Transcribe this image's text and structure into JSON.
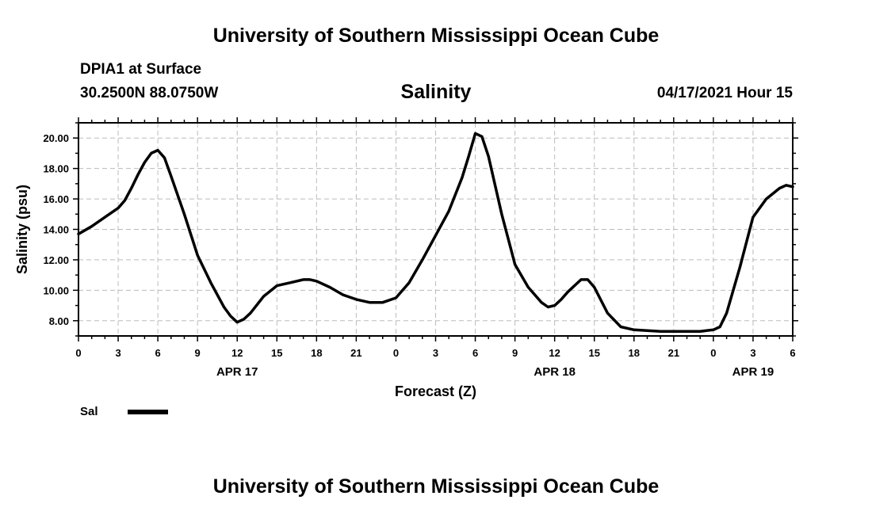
{
  "header": {
    "top_title": "University of Southern Mississippi Ocean Cube",
    "station": "DPIA1 at Surface",
    "coords": "30.2500N  88.0750W",
    "chart_title": "Salinity",
    "timestamp": "04/17/2021 Hour 15",
    "bottom_title": "University of Southern Mississippi Ocean Cube"
  },
  "legend": {
    "label": "Sal",
    "color": "#000000"
  },
  "chart_data": {
    "type": "line",
    "title": "Salinity",
    "xlabel": "Forecast (Z)",
    "ylabel": "Salinity (psu)",
    "xlim": [
      0,
      54
    ],
    "ylim": [
      7.0,
      21.0
    ],
    "x_ticks": [
      0,
      3,
      6,
      9,
      12,
      15,
      18,
      21,
      24,
      27,
      30,
      33,
      36,
      39,
      42,
      45,
      48,
      51,
      54
    ],
    "x_tick_labels": [
      "0",
      "3",
      "6",
      "9",
      "12",
      "15",
      "18",
      "21",
      "0",
      "3",
      "6",
      "9",
      "12",
      "15",
      "18",
      "21",
      "0",
      "3",
      "6"
    ],
    "date_labels": [
      {
        "x": 12,
        "label": "APR 17"
      },
      {
        "x": 36,
        "label": "APR 18"
      },
      {
        "x": 51,
        "label": "APR 19"
      }
    ],
    "y_ticks": [
      8,
      10,
      12,
      14,
      16,
      18,
      20
    ],
    "y_tick_labels": [
      "8.00",
      "10.00",
      "12.00",
      "14.00",
      "16.00",
      "18.00",
      "20.00"
    ],
    "grid": true,
    "series": [
      {
        "name": "Sal",
        "color": "#000000",
        "x": [
          0,
          1,
          2,
          3,
          3.5,
          4,
          4.5,
          5,
          5.5,
          6,
          6.5,
          7,
          8,
          9,
          10,
          11,
          11.5,
          12,
          12.5,
          13,
          14,
          15,
          16,
          17,
          17.5,
          18,
          19,
          20,
          21,
          22,
          23,
          24,
          25,
          26,
          27,
          28,
          29,
          29.5,
          30,
          30.5,
          31,
          32,
          33,
          34,
          35,
          35.5,
          36,
          36.5,
          37,
          38,
          38.5,
          39,
          40,
          41,
          42,
          43,
          44,
          45,
          46,
          47,
          48,
          48.5,
          49,
          50,
          51,
          52,
          53,
          53.5,
          54
        ],
        "values": [
          13.7,
          14.2,
          14.8,
          15.4,
          15.9,
          16.7,
          17.6,
          18.4,
          19.0,
          19.2,
          18.7,
          17.5,
          15.0,
          12.3,
          10.5,
          8.9,
          8.3,
          7.9,
          8.1,
          8.5,
          9.6,
          10.3,
          10.5,
          10.7,
          10.7,
          10.6,
          10.2,
          9.7,
          9.4,
          9.2,
          9.2,
          9.5,
          10.5,
          12.0,
          13.6,
          15.2,
          17.4,
          18.8,
          20.3,
          20.1,
          18.8,
          15.0,
          11.7,
          10.2,
          9.2,
          8.9,
          9.0,
          9.4,
          9.9,
          10.7,
          10.7,
          10.2,
          8.5,
          7.6,
          7.4,
          7.35,
          7.3,
          7.3,
          7.3,
          7.3,
          7.4,
          7.6,
          8.5,
          11.5,
          14.8,
          16.0,
          16.7,
          16.9,
          16.8
        ]
      }
    ]
  }
}
